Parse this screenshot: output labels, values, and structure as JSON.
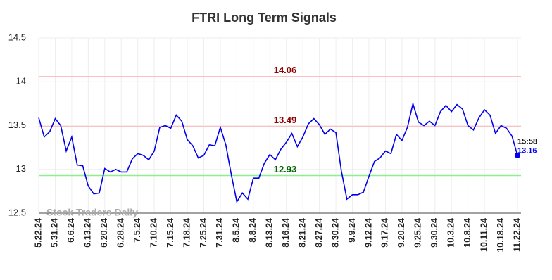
{
  "chart_data": {
    "type": "line",
    "title": "FTRI Long Term Signals",
    "categories": [
      "5.22.24",
      null,
      null,
      "5.31.24",
      null,
      null,
      "6.6.24",
      null,
      null,
      "6.13.24",
      null,
      null,
      "6.20.24",
      null,
      null,
      "6.28.24",
      null,
      null,
      "7.5.24",
      null,
      null,
      "7.10.24",
      null,
      null,
      "7.15.24",
      null,
      null,
      "7.18.24",
      null,
      null,
      "7.25.24",
      null,
      null,
      "7.31.24",
      null,
      null,
      "8.5.24",
      null,
      null,
      "8.8.24",
      null,
      null,
      "8.13.24",
      null,
      null,
      "8.16.24",
      null,
      null,
      "8.21.24",
      null,
      null,
      "8.27.24",
      null,
      null,
      "8.30.24",
      null,
      null,
      "9.9.24",
      null,
      null,
      "9.12.24",
      null,
      null,
      "9.17.24",
      null,
      null,
      "9.20.24",
      null,
      null,
      "9.25.24",
      null,
      null,
      "9.30.24",
      null,
      null,
      "10.3.24",
      null,
      null,
      "10.8.24",
      null,
      null,
      "10.11.24",
      null,
      null,
      "10.18.24",
      null,
      null,
      "11.22.24"
    ],
    "values": [
      13.59,
      13.37,
      13.43,
      13.58,
      13.5,
      13.21,
      13.37,
      13.05,
      13.04,
      12.81,
      12.72,
      12.73,
      13.01,
      12.97,
      13.0,
      12.97,
      12.97,
      13.12,
      13.18,
      13.16,
      13.11,
      13.21,
      13.48,
      13.5,
      13.47,
      13.62,
      13.55,
      13.34,
      13.27,
      13.13,
      13.16,
      13.28,
      13.27,
      13.48,
      13.28,
      12.94,
      12.63,
      12.73,
      12.66,
      12.9,
      12.9,
      13.07,
      13.17,
      13.11,
      13.23,
      13.31,
      13.41,
      13.26,
      13.37,
      13.52,
      13.58,
      13.51,
      13.4,
      13.46,
      13.42,
      12.98,
      12.66,
      12.71,
      12.71,
      12.74,
      12.92,
      13.09,
      13.13,
      13.21,
      13.18,
      13.4,
      13.33,
      13.48,
      13.75,
      13.54,
      13.5,
      13.55,
      13.5,
      13.66,
      13.73,
      13.66,
      13.74,
      13.69,
      13.5,
      13.45,
      13.59,
      13.68,
      13.62,
      13.41,
      13.5,
      13.47,
      13.38,
      13.16
    ],
    "color": "#0000ee",
    "ylim": [
      12.5,
      14.5
    ],
    "yticks": [
      12.5,
      13,
      13.5,
      14,
      14.5
    ],
    "grid": true,
    "hlines": [
      {
        "value": 14.06,
        "color": "#ffc0c0",
        "label_color": "#8b0000"
      },
      {
        "value": 13.49,
        "color": "#ffc0c0",
        "label_color": "#8b0000"
      },
      {
        "value": 12.93,
        "color": "#90ee90",
        "label_color": "#006400"
      }
    ],
    "last_time": "15:58",
    "watermark": "Stock Traders Daily"
  }
}
